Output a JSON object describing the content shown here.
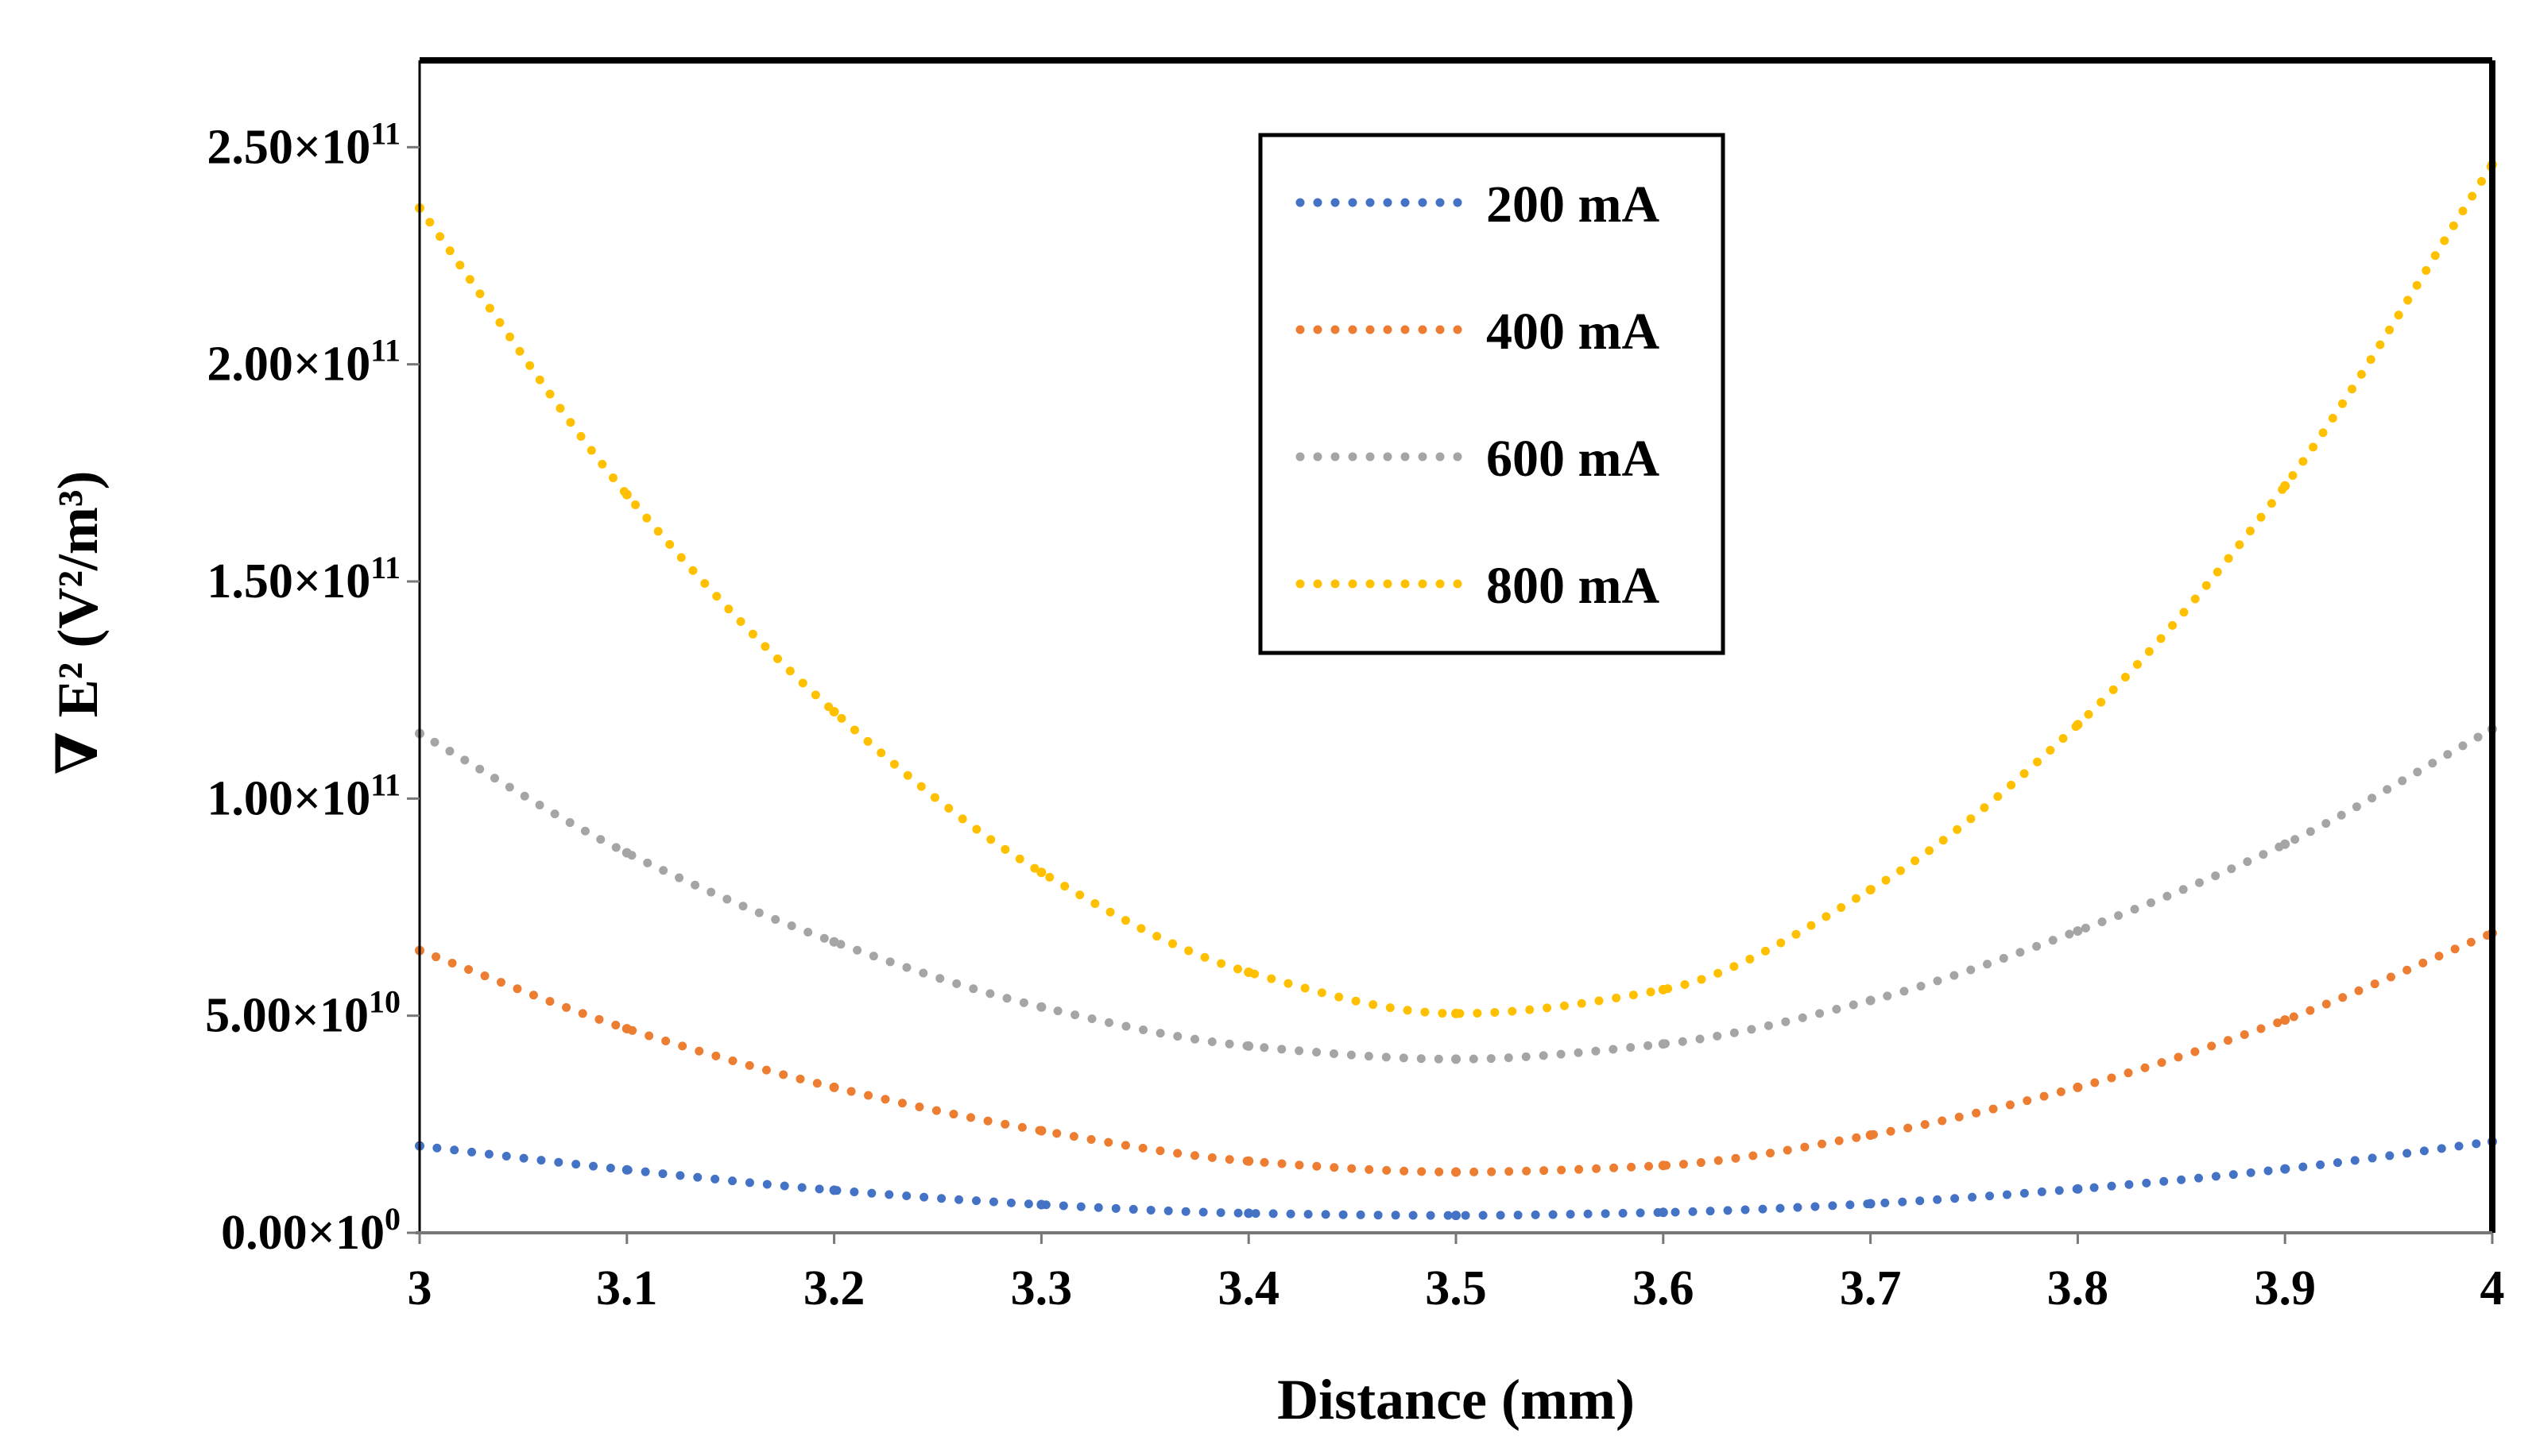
{
  "chart_data": {
    "type": "line",
    "title": "",
    "xlabel": "Distance (mm)",
    "ylabel": "∇ E² (V²/m³)",
    "xlim": [
      3,
      4
    ],
    "ylim": [
      0,
      270000000000
    ],
    "x_ticks": [
      3,
      3.1,
      3.2,
      3.3,
      3.4,
      3.5,
      3.6,
      3.7,
      3.8,
      3.9,
      4
    ],
    "x_tick_labels": [
      "3",
      "3.1",
      "3.2",
      "3.3",
      "3.4",
      "3.5",
      "3.6",
      "3.7",
      "3.8",
      "3.9",
      "4"
    ],
    "y_ticks": [
      0,
      50000000000,
      100000000000,
      150000000000,
      200000000000,
      250000000000
    ],
    "y_tick_labels": [
      {
        "mantissa": "0.00×10",
        "exp": "0"
      },
      {
        "mantissa": "5.00×10",
        "exp": "10"
      },
      {
        "mantissa": "1.00×10",
        "exp": "11"
      },
      {
        "mantissa": "1.50×10",
        "exp": "11"
      },
      {
        "mantissa": "2.00×10",
        "exp": "11"
      },
      {
        "mantissa": "2.50×10",
        "exp": "11"
      }
    ],
    "grid": false,
    "legend_position": "top-center",
    "line_style": "dotted",
    "series": [
      {
        "name": "200 mA",
        "color": "#4472C4",
        "x": [
          3.0,
          3.1,
          3.2,
          3.3,
          3.4,
          3.5,
          3.6,
          3.7,
          3.8,
          3.9,
          4.0
        ],
        "values": [
          20000000000,
          14500000000,
          9800000000,
          6500000000,
          4500000000,
          4000000000,
          4700000000,
          6700000000,
          10100000000,
          14700000000,
          21000000000
        ]
      },
      {
        "name": "400 mA",
        "color": "#ED7D31",
        "x": [
          3.0,
          3.1,
          3.2,
          3.3,
          3.4,
          3.5,
          3.6,
          3.7,
          3.8,
          3.9,
          4.0
        ],
        "values": [
          65000000000,
          47000000000,
          33500000000,
          23500000000,
          16500000000,
          14000000000,
          15500000000,
          22500000000,
          33500000000,
          49000000000,
          69000000000
        ]
      },
      {
        "name": "600 mA",
        "color": "#A5A5A5",
        "x": [
          3.0,
          3.1,
          3.2,
          3.3,
          3.4,
          3.5,
          3.6,
          3.7,
          3.8,
          3.9,
          4.0
        ],
        "values": [
          115000000000,
          87500000000,
          67000000000,
          52000000000,
          43000000000,
          40000000000,
          43500000000,
          53500000000,
          69500000000,
          89500000000,
          116000000000
        ]
      },
      {
        "name": "800 mA",
        "color": "#FFC000",
        "x": [
          3.0,
          3.1,
          3.2,
          3.3,
          3.4,
          3.5,
          3.6,
          3.7,
          3.8,
          3.9,
          4.0
        ],
        "values": [
          236000000000,
          170000000000,
          120000000000,
          83000000000,
          60000000000,
          50500000000,
          56000000000,
          79000000000,
          117000000000,
          172000000000,
          246000000000
        ]
      }
    ]
  }
}
